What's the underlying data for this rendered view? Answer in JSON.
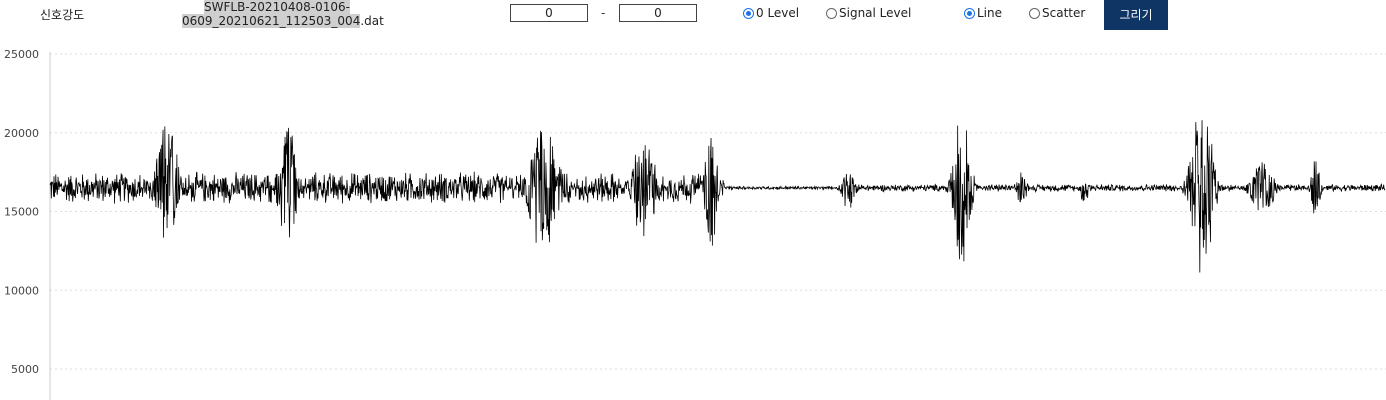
{
  "toolbar": {
    "title": "신호강도",
    "filename_line1": "SWFLB-20210408-0106-",
    "filename_line2_highlight": "0609_20210621_112503_004",
    "filename_line2_ext": ".dat",
    "range_from": "0",
    "range_separator": "-",
    "range_to": "0",
    "level_options": [
      {
        "label": "0 Level",
        "checked": true
      },
      {
        "label": "Signal Level",
        "checked": false
      }
    ],
    "plot_options": [
      {
        "label": "Line",
        "checked": true
      },
      {
        "label": "Scatter",
        "checked": false
      }
    ],
    "draw_button": "그리기"
  },
  "colors": {
    "line": "#000000",
    "grid": "#dddddd",
    "button_bg": "#0f3564",
    "radio_checked": "#1a73e8",
    "highlight": "#cfcfcf"
  },
  "chart_data": {
    "type": "line",
    "title": "",
    "xlabel": "",
    "ylabel": "",
    "ylim": [
      2500,
      25000
    ],
    "yticks": [
      5000,
      10000,
      15000,
      20000,
      25000
    ],
    "grid": true,
    "legend": "none",
    "baseline": 16500,
    "n_samples": 3000,
    "segments": [
      {
        "x_start": 0.0,
        "x_end": 0.505,
        "amplitude": 1100
      },
      {
        "x_start": 0.505,
        "x_end": 0.595,
        "amplitude": 120
      },
      {
        "x_start": 0.595,
        "x_end": 1.0,
        "amplitude": 250
      }
    ],
    "bursts": [
      {
        "x": 0.088,
        "width": 0.01,
        "max": 21000,
        "min": 12500
      },
      {
        "x": 0.178,
        "width": 0.008,
        "max": 21200,
        "min": 12200
      },
      {
        "x": 0.37,
        "width": 0.014,
        "max": 20400,
        "min": 12000
      },
      {
        "x": 0.445,
        "width": 0.01,
        "max": 20300,
        "min": 12800
      },
      {
        "x": 0.495,
        "width": 0.006,
        "max": 20000,
        "min": 12300
      },
      {
        "x": 0.598,
        "width": 0.006,
        "max": 17500,
        "min": 15000
      },
      {
        "x": 0.683,
        "width": 0.008,
        "max": 21500,
        "min": 11400
      },
      {
        "x": 0.728,
        "width": 0.004,
        "max": 17800,
        "min": 15000
      },
      {
        "x": 0.775,
        "width": 0.004,
        "max": 17200,
        "min": 15400
      },
      {
        "x": 0.863,
        "width": 0.01,
        "max": 22400,
        "min": 10300
      },
      {
        "x": 0.908,
        "width": 0.01,
        "max": 18400,
        "min": 14300
      },
      {
        "x": 0.948,
        "width": 0.004,
        "max": 18400,
        "min": 14300
      }
    ]
  }
}
